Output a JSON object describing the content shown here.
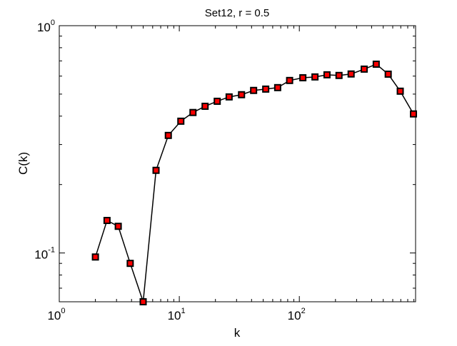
{
  "chart_data": {
    "type": "line",
    "title": "Set12, r = 0.5",
    "xlabel": "k",
    "ylabel": "C(k)",
    "xscale": "log",
    "yscale": "log",
    "xlim": [
      1,
      930
    ],
    "ylim": [
      0.061,
      1
    ],
    "xticks": [
      {
        "base": "10",
        "exp": "0",
        "value": 1
      },
      {
        "base": "10",
        "exp": "1",
        "value": 10
      },
      {
        "base": "10",
        "exp": "2",
        "value": 100
      }
    ],
    "yticks": [
      {
        "base": "10",
        "exp": "-1",
        "value": 0.1
      },
      {
        "base": "10",
        "exp": "0",
        "value": 1
      }
    ],
    "grid": false,
    "marker": "square",
    "marker_color": "#ff0000",
    "line_color": "#000000",
    "series": [
      {
        "x": [
          2,
          2.5,
          3.1,
          3.9,
          5,
          6.4,
          8.1,
          10.3,
          13,
          16.4,
          20.7,
          26,
          33,
          41.6,
          52.5,
          66,
          83,
          107,
          135,
          170,
          214,
          270,
          347,
          437,
          550,
          693,
          893
        ],
        "y": [
          0.096,
          0.139,
          0.131,
          0.09,
          0.061,
          0.231,
          0.329,
          0.38,
          0.415,
          0.442,
          0.465,
          0.486,
          0.497,
          0.519,
          0.526,
          0.534,
          0.574,
          0.59,
          0.595,
          0.608,
          0.604,
          0.613,
          0.644,
          0.677,
          0.612,
          0.515,
          0.409
        ]
      }
    ]
  }
}
